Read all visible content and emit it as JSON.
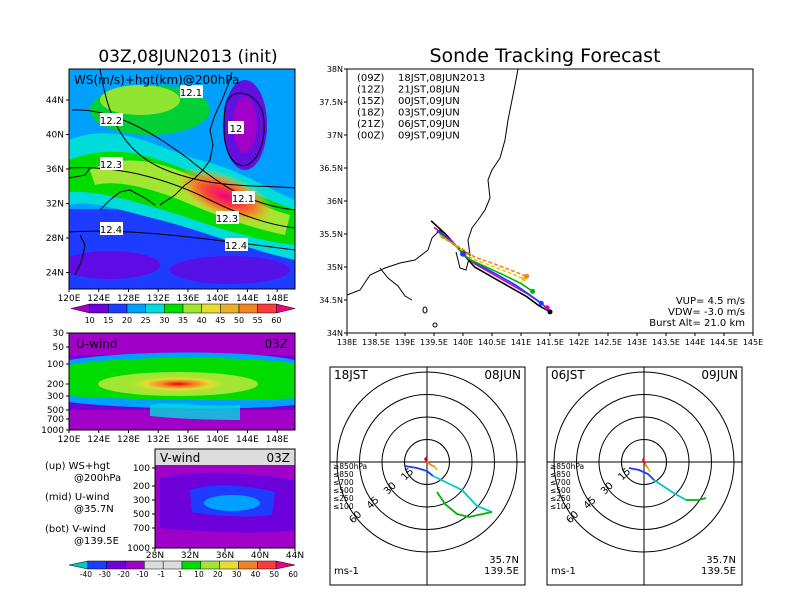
{
  "left_title": "03Z,08JUN2013 (init)",
  "right_title": "Sonde Tracking Forecast",
  "ws_map": {
    "label": "WS(m/s)+hgt(km)@200hPa",
    "lon_ticks": [
      "120E",
      "124E",
      "128E",
      "132E",
      "136E",
      "140E",
      "144E",
      "148E"
    ],
    "lat_ticks": [
      "44N",
      "40N",
      "36N",
      "32N",
      "28N",
      "24N"
    ],
    "contours": [
      "12.1",
      "12",
      "12.2",
      "12.3",
      "12.1",
      "12.3",
      "12.4",
      "12.4"
    ]
  },
  "ws_colorbar": {
    "labels": [
      "10",
      "15",
      "20",
      "25",
      "30",
      "35",
      "40",
      "45",
      "50",
      "55",
      "60"
    ],
    "colors": [
      "#a000c8",
      "#6e00dc",
      "#1e3cff",
      "#00a0ff",
      "#00dcdc",
      "#00dc00",
      "#a0e632",
      "#e6dc32",
      "#e6af2d",
      "#f08228",
      "#fa3c3c",
      "#f00082"
    ]
  },
  "u_panel": {
    "label": "U-wind",
    "time": "03Z",
    "levels": [
      "30",
      "50",
      "100",
      "200",
      "300",
      "500",
      "700",
      "1000"
    ],
    "lon_ticks": [
      "120E",
      "124E",
      "128E",
      "132E",
      "136E",
      "140E",
      "144E",
      "148E"
    ]
  },
  "v_panel": {
    "label": "V-wind",
    "time": "03Z",
    "levels": [
      "100",
      "200",
      "300",
      "500",
      "700",
      "1000"
    ],
    "lat_ticks": [
      "28N",
      "32N",
      "36N",
      "40N",
      "44N"
    ]
  },
  "notes": [
    {
      "a": "(up) WS+hgt",
      "b": "@200hPa"
    },
    {
      "a": "(mid) U-wind",
      "b": "@35.7N"
    },
    {
      "a": "(bot) V-wind",
      "b": "@139.5E"
    }
  ],
  "v_colorbar": {
    "labels": [
      "-40",
      "-30",
      "-20",
      "-10",
      "-1",
      "1",
      "10",
      "20",
      "30",
      "40",
      "50",
      "60"
    ],
    "colors": [
      "#00c8c8",
      "#1e3cff",
      "#6e00dc",
      "#a000c8",
      "#dcdcdc",
      "#dcdcdc",
      "#00dc00",
      "#a0e632",
      "#e6dc32",
      "#f08228",
      "#fa3c3c",
      "#f00082"
    ]
  },
  "track_map": {
    "lon_ticks": [
      "138E",
      "138.5E",
      "139E",
      "139.5E",
      "140E",
      "140.5E",
      "141E",
      "141.5E",
      "142E",
      "142.5E",
      "143E",
      "143.5E",
      "144E",
      "144.5E",
      "145E"
    ],
    "lat_ticks": [
      "38N",
      "37.5N",
      "37N",
      "36.5N",
      "36N",
      "35.5N",
      "35N",
      "34.5N",
      "34N"
    ],
    "legend": [
      {
        "z": "(09Z)",
        "t": "18JST,08JUN2013",
        "color": "#000000"
      },
      {
        "z": "(12Z)",
        "t": "21JST,08JUN",
        "color": "#c800c8"
      },
      {
        "z": "(15Z)",
        "t": "00JST,09JUN",
        "color": "#1e3cff"
      },
      {
        "z": "(18Z)",
        "t": "03JST,09JUN",
        "color": "#00b400"
      },
      {
        "z": "(21Z)",
        "t": "06JST,09JUN",
        "color": "#f0c800"
      },
      {
        "z": "(00Z)",
        "t": "09JST,09JUN",
        "color": "#f08228"
      }
    ],
    "params": [
      "VUP= 4.5 m/s",
      "VDW= -3.0 m/s",
      "Burst Alt= 21.0 km"
    ]
  },
  "chart_data": [
    {
      "type": "line",
      "title": "Sonde Tracking Forecast",
      "xlim": [
        138,
        145
      ],
      "ylim": [
        34,
        38
      ],
      "series": [
        {
          "name": "(09Z) 18JST,08JUN2013",
          "x": [
            139.45,
            139.7,
            139.9,
            140.0,
            140.2,
            140.5,
            140.8,
            141.1,
            141.3,
            141.5
          ],
          "y": [
            35.7,
            35.5,
            35.3,
            35.2,
            35.0,
            34.85,
            34.7,
            34.55,
            34.42,
            34.32
          ]
        },
        {
          "name": "(12Z) 21JST,08JUN",
          "x": [
            139.5,
            139.8,
            140.0,
            140.2,
            140.5,
            140.8,
            141.1,
            141.3,
            141.45
          ],
          "y": [
            35.6,
            35.4,
            35.2,
            35.05,
            34.9,
            34.75,
            34.6,
            34.48,
            34.38
          ]
        },
        {
          "name": "(15Z) 00JST,09JUN",
          "x": [
            139.55,
            139.85,
            140.05,
            140.3,
            140.6,
            140.9,
            141.15,
            141.35
          ],
          "y": [
            35.55,
            35.35,
            35.15,
            35.02,
            34.88,
            34.73,
            34.58,
            34.45
          ]
        },
        {
          "name": "(18Z) 03JST,09JUN",
          "x": [
            139.6,
            139.9,
            140.1,
            140.4,
            140.7,
            141.0,
            141.2
          ],
          "y": [
            35.5,
            35.3,
            35.12,
            35.0,
            34.88,
            34.75,
            34.63
          ]
        },
        {
          "name": "(21Z) 06JST,09JUN",
          "x": [
            139.6,
            139.95,
            140.15,
            140.45,
            140.75,
            141.05
          ],
          "y": [
            35.48,
            35.28,
            35.13,
            35.03,
            34.93,
            34.82
          ]
        },
        {
          "name": "(00Z) 09JST,09JUN",
          "x": [
            139.62,
            139.98,
            140.2,
            140.5,
            140.8,
            141.1
          ],
          "y": [
            35.46,
            35.28,
            35.15,
            35.06,
            34.96,
            34.86
          ]
        }
      ]
    }
  ],
  "hodo_left": {
    "time": "18JST",
    "date": "08JUN",
    "rings": [
      "15",
      "30",
      "45",
      "60"
    ],
    "legend": [
      {
        "t": "≥850hPa",
        "color": "#f00000"
      },
      {
        "t": "≤850",
        "color": "#f08228"
      },
      {
        "t": "≤700",
        "color": "#e6c800"
      },
      {
        "t": "≤500",
        "color": "#00b400"
      },
      {
        "t": "≤250",
        "color": "#00c8c8"
      },
      {
        "t": "≤100",
        "color": "#1e3cff"
      }
    ],
    "lat": "35.7N",
    "lon": "139.5E",
    "unit": "ms-1"
  },
  "hodo_right": {
    "time": "06JST",
    "date": "09JUN",
    "rings": [
      "15",
      "30",
      "45",
      "60"
    ],
    "legend": [
      {
        "t": "≥850hPa",
        "color": "#f00000"
      },
      {
        "t": "≤850",
        "color": "#f08228"
      },
      {
        "t": "≤700",
        "color": "#e6c800"
      },
      {
        "t": "≤500",
        "color": "#00b400"
      },
      {
        "t": "≤250",
        "color": "#00c8c8"
      },
      {
        "t": "≤100",
        "color": "#1e3cff"
      }
    ],
    "lat": "35.7N",
    "lon": "139.5E",
    "unit": "ms-1"
  }
}
